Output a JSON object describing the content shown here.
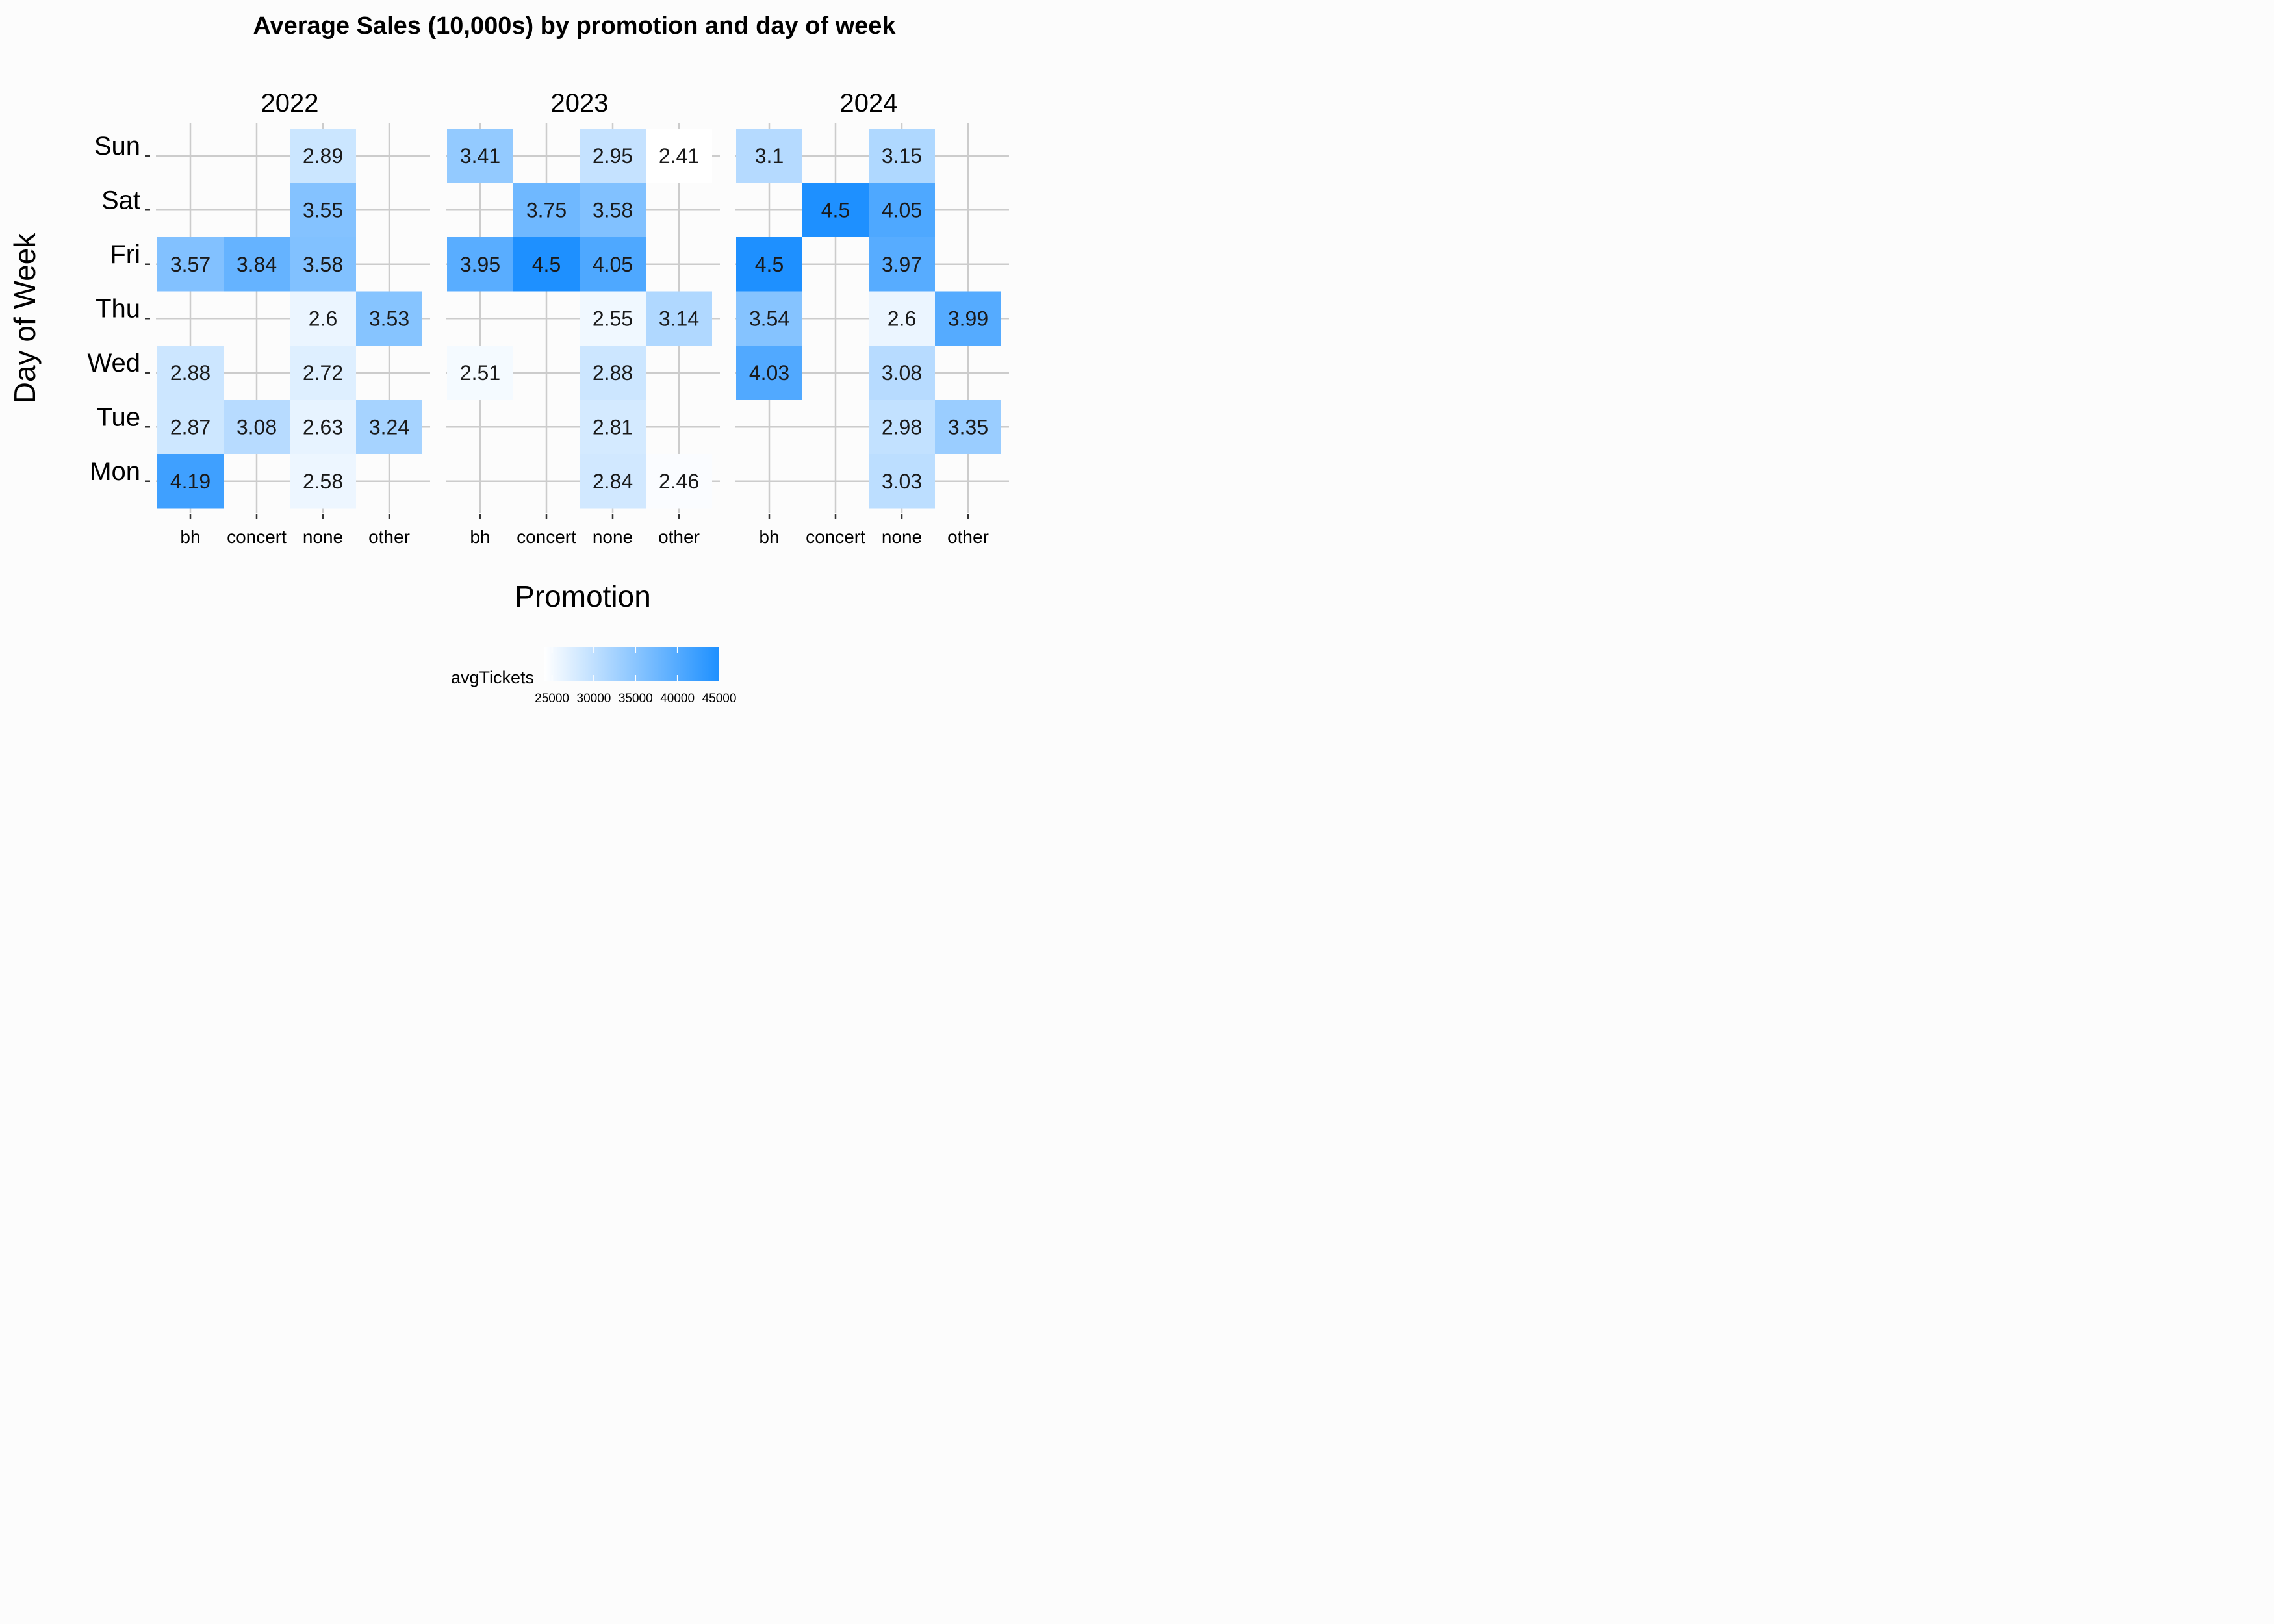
{
  "chart_data": {
    "type": "heatmap",
    "title": "Average Sales (10,000s) by promotion and day of week",
    "xlabel": "Promotion",
    "ylabel": "Day of Week",
    "facets": [
      "2022",
      "2023",
      "2024"
    ],
    "x_categories": [
      "bh",
      "concert",
      "none",
      "other"
    ],
    "y_categories": [
      "Mon",
      "Tue",
      "Wed",
      "Thu",
      "Fri",
      "Sat",
      "Sun"
    ],
    "colors": {
      "low": "#ffffff",
      "high": "#1e90ff"
    },
    "legend": {
      "title": "avgTickets",
      "ticks": [
        "25000",
        "30000",
        "35000",
        "40000",
        "45000"
      ],
      "range": [
        24100,
        45000
      ],
      "position": "bottom"
    },
    "grid": true,
    "cells": [
      {
        "facet": "2022",
        "x": "none",
        "y": "Sun",
        "value": 2.89
      },
      {
        "facet": "2022",
        "x": "none",
        "y": "Sat",
        "value": 3.55
      },
      {
        "facet": "2022",
        "x": "bh",
        "y": "Fri",
        "value": 3.57
      },
      {
        "facet": "2022",
        "x": "concert",
        "y": "Fri",
        "value": 3.84
      },
      {
        "facet": "2022",
        "x": "none",
        "y": "Fri",
        "value": 3.58
      },
      {
        "facet": "2022",
        "x": "none",
        "y": "Thu",
        "value": 2.6
      },
      {
        "facet": "2022",
        "x": "other",
        "y": "Thu",
        "value": 3.53
      },
      {
        "facet": "2022",
        "x": "bh",
        "y": "Wed",
        "value": 2.88
      },
      {
        "facet": "2022",
        "x": "none",
        "y": "Wed",
        "value": 2.72
      },
      {
        "facet": "2022",
        "x": "bh",
        "y": "Tue",
        "value": 2.87
      },
      {
        "facet": "2022",
        "x": "concert",
        "y": "Tue",
        "value": 3.08
      },
      {
        "facet": "2022",
        "x": "none",
        "y": "Tue",
        "value": 2.63
      },
      {
        "facet": "2022",
        "x": "other",
        "y": "Tue",
        "value": 3.24
      },
      {
        "facet": "2022",
        "x": "bh",
        "y": "Mon",
        "value": 4.19
      },
      {
        "facet": "2022",
        "x": "none",
        "y": "Mon",
        "value": 2.58
      },
      {
        "facet": "2023",
        "x": "bh",
        "y": "Sun",
        "value": 3.41
      },
      {
        "facet": "2023",
        "x": "none",
        "y": "Sun",
        "value": 2.95
      },
      {
        "facet": "2023",
        "x": "other",
        "y": "Sun",
        "value": 2.41
      },
      {
        "facet": "2023",
        "x": "concert",
        "y": "Sat",
        "value": 3.75
      },
      {
        "facet": "2023",
        "x": "none",
        "y": "Sat",
        "value": 3.58
      },
      {
        "facet": "2023",
        "x": "bh",
        "y": "Fri",
        "value": 3.95
      },
      {
        "facet": "2023",
        "x": "concert",
        "y": "Fri",
        "value": 4.5
      },
      {
        "facet": "2023",
        "x": "none",
        "y": "Fri",
        "value": 4.05
      },
      {
        "facet": "2023",
        "x": "none",
        "y": "Thu",
        "value": 2.55
      },
      {
        "facet": "2023",
        "x": "other",
        "y": "Thu",
        "value": 3.14
      },
      {
        "facet": "2023",
        "x": "bh",
        "y": "Wed",
        "value": 2.51
      },
      {
        "facet": "2023",
        "x": "none",
        "y": "Wed",
        "value": 2.88
      },
      {
        "facet": "2023",
        "x": "none",
        "y": "Tue",
        "value": 2.81
      },
      {
        "facet": "2023",
        "x": "none",
        "y": "Mon",
        "value": 2.84
      },
      {
        "facet": "2023",
        "x": "other",
        "y": "Mon",
        "value": 2.46
      },
      {
        "facet": "2024",
        "x": "bh",
        "y": "Sun",
        "value": 3.1
      },
      {
        "facet": "2024",
        "x": "none",
        "y": "Sun",
        "value": 3.15
      },
      {
        "facet": "2024",
        "x": "concert",
        "y": "Sat",
        "value": 4.5
      },
      {
        "facet": "2024",
        "x": "none",
        "y": "Sat",
        "value": 4.05
      },
      {
        "facet": "2024",
        "x": "bh",
        "y": "Fri",
        "value": 4.5
      },
      {
        "facet": "2024",
        "x": "none",
        "y": "Fri",
        "value": 3.97
      },
      {
        "facet": "2024",
        "x": "bh",
        "y": "Thu",
        "value": 3.54
      },
      {
        "facet": "2024",
        "x": "none",
        "y": "Thu",
        "value": 2.6
      },
      {
        "facet": "2024",
        "x": "other",
        "y": "Thu",
        "value": 3.99
      },
      {
        "facet": "2024",
        "x": "bh",
        "y": "Wed",
        "value": 4.03
      },
      {
        "facet": "2024",
        "x": "none",
        "y": "Wed",
        "value": 3.08
      },
      {
        "facet": "2024",
        "x": "none",
        "y": "Tue",
        "value": 2.98
      },
      {
        "facet": "2024",
        "x": "other",
        "y": "Tue",
        "value": 3.35
      },
      {
        "facet": "2024",
        "x": "none",
        "y": "Mon",
        "value": 3.03
      }
    ]
  }
}
